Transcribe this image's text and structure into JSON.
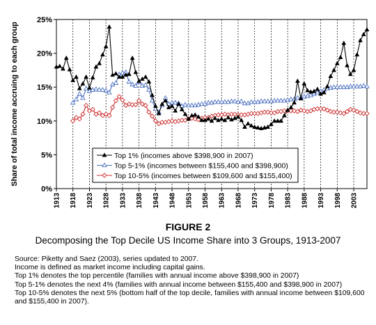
{
  "chart_data": {
    "type": "line",
    "title": "",
    "xlabel": "",
    "ylabel": "Share of total income accruing to each group",
    "ylim": [
      0,
      25
    ],
    "yticks": [
      "0%",
      "5%",
      "10%",
      "15%",
      "20%",
      "25%"
    ],
    "xlim": [
      1913,
      2007
    ],
    "xticks": [
      "1913",
      "1918",
      "1923",
      "1928",
      "1933",
      "1938",
      "1943",
      "1948",
      "1953",
      "1958",
      "1963",
      "1968",
      "1973",
      "1978",
      "1983",
      "1988",
      "1993",
      "1998",
      "2003"
    ],
    "grid": "vertical dashed at each 5-year tick",
    "legend_position": "lower-center",
    "x": [
      1913,
      1914,
      1915,
      1916,
      1917,
      1918,
      1919,
      1920,
      1921,
      1922,
      1923,
      1924,
      1925,
      1926,
      1927,
      1928,
      1929,
      1930,
      1931,
      1932,
      1933,
      1934,
      1935,
      1936,
      1937,
      1938,
      1939,
      1940,
      1941,
      1942,
      1943,
      1944,
      1945,
      1946,
      1947,
      1948,
      1949,
      1950,
      1951,
      1952,
      1953,
      1954,
      1955,
      1956,
      1957,
      1958,
      1959,
      1960,
      1961,
      1962,
      1963,
      1964,
      1965,
      1966,
      1967,
      1968,
      1969,
      1970,
      1971,
      1972,
      1973,
      1974,
      1975,
      1976,
      1977,
      1978,
      1979,
      1980,
      1981,
      1982,
      1983,
      1984,
      1985,
      1986,
      1987,
      1988,
      1989,
      1990,
      1991,
      1992,
      1993,
      1994,
      1995,
      1996,
      1997,
      1998,
      1999,
      2000,
      2001,
      2002,
      2003,
      2004,
      2005,
      2006,
      2007
    ],
    "series": [
      {
        "name": "Top 1% (incomes above $398,900 in 2007)",
        "color": "#000000",
        "marker": "triangle-filled",
        "values": [
          18.0,
          18.1,
          17.7,
          19.3,
          17.6,
          16.0,
          16.5,
          14.8,
          15.5,
          16.5,
          14.9,
          16.4,
          18.0,
          18.5,
          19.8,
          21.0,
          23.9,
          16.8,
          17.0,
          16.5,
          16.5,
          16.8,
          16.9,
          19.3,
          17.2,
          15.9,
          16.2,
          16.5,
          15.8,
          13.8,
          12.2,
          11.1,
          12.5,
          13.0,
          12.0,
          12.2,
          11.5,
          12.5,
          11.7,
          11.0,
          10.3,
          10.8,
          10.9,
          10.6,
          10.1,
          10.1,
          10.3,
          10.0,
          10.4,
          10.1,
          10.3,
          10.1,
          10.5,
          10.2,
          10.4,
          10.6,
          10.1,
          9.1,
          9.6,
          9.3,
          9.1,
          9.0,
          8.9,
          9.0,
          9.1,
          9.5,
          10.0,
          10.0,
          10.0,
          10.8,
          11.6,
          12.0,
          12.7,
          15.9,
          13.3,
          15.5,
          14.5,
          14.3,
          14.4,
          14.7,
          14.0,
          14.2,
          15.1,
          16.6,
          17.5,
          18.5,
          19.4,
          21.5,
          18.2,
          16.9,
          17.5,
          19.8,
          21.9,
          22.8,
          23.5
        ]
      },
      {
        "name": "Top 5-1% (incomes between $155,400 and $398,900)",
        "color": "#4a6fc0",
        "marker": "triangle-open",
        "values": [
          null,
          null,
          null,
          null,
          null,
          12.7,
          13.2,
          14.0,
          13.4,
          14.8,
          14.4,
          14.6,
          14.7,
          14.6,
          14.6,
          14.5,
          14.2,
          15.4,
          15.6,
          16.9,
          17.1,
          17.2,
          15.8,
          15.4,
          15.2,
          15.8,
          15.2,
          15.3,
          14.6,
          13.0,
          11.8,
          11.3,
          12.3,
          13.4,
          12.5,
          12.7,
          12.7,
          12.6,
          12.2,
          12.4,
          12.3,
          12.3,
          12.3,
          12.4,
          12.5,
          12.5,
          12.7,
          12.7,
          12.8,
          12.8,
          12.8,
          12.8,
          12.8,
          12.9,
          12.9,
          12.8,
          12.9,
          12.6,
          12.6,
          12.8,
          12.8,
          12.8,
          12.9,
          12.9,
          12.9,
          12.9,
          13.0,
          13.0,
          13.0,
          13.0,
          13.1,
          13.2,
          13.2,
          13.4,
          13.4,
          13.6,
          13.7,
          13.8,
          14.0,
          14.2,
          14.4,
          14.6,
          14.8,
          14.9,
          15.0,
          15.0,
          15.0,
          15.0,
          15.0,
          15.1,
          15.1,
          15.1,
          15.1,
          15.2,
          15.1
        ]
      },
      {
        "name": "Top 10-5% (incomes between $109,600 and $155,400)",
        "color": "#cc2a2a",
        "marker": "diamond-open",
        "values": [
          null,
          null,
          null,
          null,
          null,
          10.0,
          10.5,
          10.3,
          11.0,
          12.3,
          11.5,
          11.7,
          11.0,
          11.2,
          10.8,
          11.0,
          10.8,
          12.0,
          13.0,
          13.6,
          13.1,
          12.3,
          12.5,
          12.4,
          12.4,
          13.0,
          12.5,
          12.3,
          11.3,
          10.7,
          10.0,
          9.6,
          9.8,
          9.8,
          9.9,
          10.0,
          9.9,
          10.0,
          10.1,
          10.1,
          10.3,
          10.4,
          10.3,
          10.2,
          10.4,
          10.5,
          10.5,
          10.7,
          10.8,
          10.9,
          10.9,
          11.0,
          10.9,
          11.0,
          11.0,
          10.9,
          10.9,
          10.9,
          11.0,
          11.1,
          11.1,
          11.1,
          11.2,
          11.3,
          11.3,
          11.2,
          11.2,
          11.4,
          11.4,
          11.5,
          11.5,
          11.5,
          11.5,
          11.4,
          11.6,
          11.5,
          11.4,
          11.5,
          11.7,
          11.8,
          11.8,
          11.8,
          11.6,
          11.4,
          11.3,
          11.3,
          11.2,
          11.1,
          11.4,
          11.7,
          11.6,
          11.4,
          11.2,
          11.1,
          11.1
        ]
      }
    ]
  },
  "caption": {
    "figure_label": "FIGURE 2",
    "figure_title": "Decomposing the Top Decile US Income Share into 3 Groups, 1913-2007"
  },
  "notes": {
    "source": "Source: Piketty and Saez (2003), series updated to 2007.",
    "income_def": "Income is defined as market income including capital gains.",
    "top1": "Top 1% denotes the top percentile (families with annual income above $398,900 in 2007)",
    "top5_1": "Top 5-1% denotes the next 4% (families with annual income between $155,400 and $398,900 in 2007)",
    "top10_5": "Top 10-5% denotes the next 5% (bottom half of the top decile, families with annual income between $109,600 and $155,400 in 2007)."
  }
}
